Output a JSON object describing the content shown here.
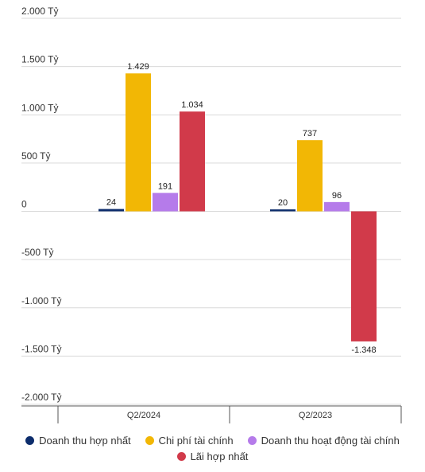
{
  "chart_data": {
    "type": "bar",
    "categories": [
      "Q2/2024",
      "Q2/2023"
    ],
    "series": [
      {
        "name": "Doanh thu hợp nhất",
        "color": "#0d2d6c",
        "values": [
          24,
          20
        ],
        "labels": [
          "24",
          "20"
        ]
      },
      {
        "name": "Chi phí tài chính",
        "color": "#f2b705",
        "values": [
          1429,
          737
        ],
        "labels": [
          "1.429",
          "737"
        ]
      },
      {
        "name": "Doanh thu hoạt động tài chính",
        "color": "#b57bea",
        "values": [
          191,
          96
        ],
        "labels": [
          "191",
          "96"
        ]
      },
      {
        "name": "Lãi hợp nhất",
        "color": "#d13a4a",
        "values": [
          1034,
          -1348
        ],
        "labels": [
          "1.034",
          "-1.348"
        ]
      }
    ],
    "yticks": [
      {
        "value": 2000,
        "label": "2.000 Tỷ"
      },
      {
        "value": 1500,
        "label": "1.500 Tỷ"
      },
      {
        "value": 1000,
        "label": "1.000 Tỷ"
      },
      {
        "value": 500,
        "label": "500 Tỷ"
      },
      {
        "value": 0,
        "label": "0"
      },
      {
        "value": -500,
        "label": "-500 Tỷ"
      },
      {
        "value": -1000,
        "label": "-1.000 Tỷ"
      },
      {
        "value": -1500,
        "label": "-1.500 Tỷ"
      },
      {
        "value": -2000,
        "label": "-2.000 Tỷ"
      }
    ],
    "ylim": [
      -2000,
      2000
    ],
    "grid": true,
    "legend_position": "bottom"
  }
}
